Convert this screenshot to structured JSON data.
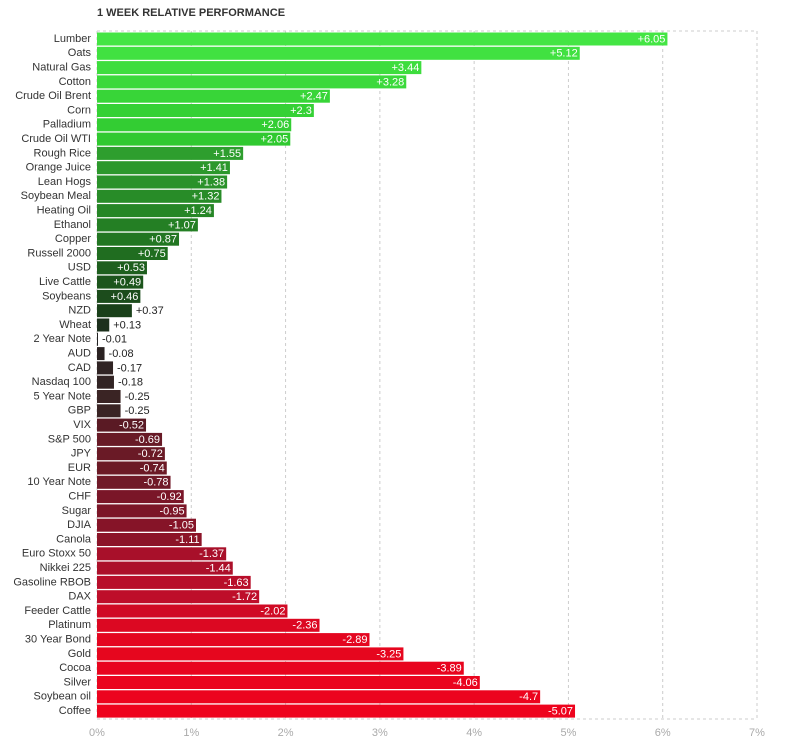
{
  "chart_data": {
    "type": "bar",
    "orientation": "horizontal",
    "title": "1 WEEK RELATIVE PERFORMANCE",
    "categories": [
      "Lumber",
      "Oats",
      "Natural Gas",
      "Cotton",
      "Crude Oil Brent",
      "Corn",
      "Palladium",
      "Crude Oil WTI",
      "Rough Rice",
      "Orange Juice",
      "Lean Hogs",
      "Soybean Meal",
      "Heating Oil",
      "Ethanol",
      "Copper",
      "Russell 2000",
      "USD",
      "Live Cattle",
      "Soybeans",
      "NZD",
      "Wheat",
      "2 Year Note",
      "AUD",
      "CAD",
      "Nasdaq 100",
      "5 Year Note",
      "GBP",
      "VIX",
      "S&P 500",
      "JPY",
      "EUR",
      "10 Year Note",
      "CHF",
      "Sugar",
      "DJIA",
      "Canola",
      "Euro Stoxx 50",
      "Nikkei 225",
      "Gasoline RBOB",
      "DAX",
      "Feeder Cattle",
      "Platinum",
      "30 Year Bond",
      "Gold",
      "Cocoa",
      "Silver",
      "Soybean oil",
      "Coffee"
    ],
    "values": [
      6.05,
      5.12,
      3.44,
      3.28,
      2.47,
      2.3,
      2.06,
      2.05,
      1.55,
      1.41,
      1.38,
      1.32,
      1.24,
      1.07,
      0.87,
      0.75,
      0.53,
      0.49,
      0.46,
      0.37,
      0.13,
      -0.01,
      -0.08,
      -0.17,
      -0.18,
      -0.25,
      -0.25,
      -0.52,
      -0.69,
      -0.72,
      -0.74,
      -0.78,
      -0.92,
      -0.95,
      -1.05,
      -1.11,
      -1.37,
      -1.44,
      -1.63,
      -1.72,
      -2.02,
      -2.36,
      -2.89,
      -3.25,
      -3.89,
      -4.06,
      -4.7,
      -5.07
    ],
    "value_labels": [
      "+6.05",
      "+5.12",
      "+3.44",
      "+3.28",
      "+2.47",
      "+2.3",
      "+2.06",
      "+2.05",
      "+1.55",
      "+1.41",
      "+1.38",
      "+1.32",
      "+1.24",
      "+1.07",
      "+0.87",
      "+0.75",
      "+0.53",
      "+0.49",
      "+0.46",
      "+0.37",
      "+0.13",
      "-0.01",
      "-0.08",
      "-0.17",
      "-0.18",
      "-0.25",
      "-0.25",
      "-0.52",
      "-0.69",
      "-0.72",
      "-0.74",
      "-0.78",
      "-0.92",
      "-0.95",
      "-1.05",
      "-1.11",
      "-1.37",
      "-1.44",
      "-1.63",
      "-1.72",
      "-2.02",
      "-2.36",
      "-2.89",
      "-3.25",
      "-3.89",
      "-4.06",
      "-4.7",
      "-5.07"
    ],
    "colors": [
      "#44e544",
      "#41e141",
      "#3edd3e",
      "#3bd93b",
      "#38d538",
      "#35d135",
      "#33cd33",
      "#30c930",
      "#2e9e2e",
      "#2c982c",
      "#2a922a",
      "#288c28",
      "#268626",
      "#247f24",
      "#227622",
      "#206d20",
      "#1e5f1e",
      "#1c551c",
      "#1c4c1c",
      "#1a401a",
      "#1c301c",
      "#222222",
      "#2a2222",
      "#302424",
      "#322424",
      "#3a2424",
      "#3a2424",
      "#5a1a24",
      "#681a26",
      "#6a1a26",
      "#6c1a26",
      "#701a28",
      "#7a1628",
      "#7c1628",
      "#861428",
      "#8c1428",
      "#a8102a",
      "#ac102a",
      "#b80e2a",
      "#be0e2a",
      "#d00a24",
      "#dc0822",
      "#e40620",
      "#e6061e",
      "#e8041e",
      "#ea041e",
      "#ec041e",
      "#ee031d"
    ],
    "xlim": [
      0,
      7
    ],
    "xticks": [
      {
        "value": 0,
        "label": "0%"
      },
      {
        "value": 1,
        "label": "1%"
      },
      {
        "value": 2,
        "label": "2%"
      },
      {
        "value": 3,
        "label": "3%"
      },
      {
        "value": 4,
        "label": "4%"
      },
      {
        "value": 5,
        "label": "5%"
      },
      {
        "value": 6,
        "label": "6%"
      },
      {
        "value": 7,
        "label": "7%"
      }
    ],
    "grid": true
  }
}
